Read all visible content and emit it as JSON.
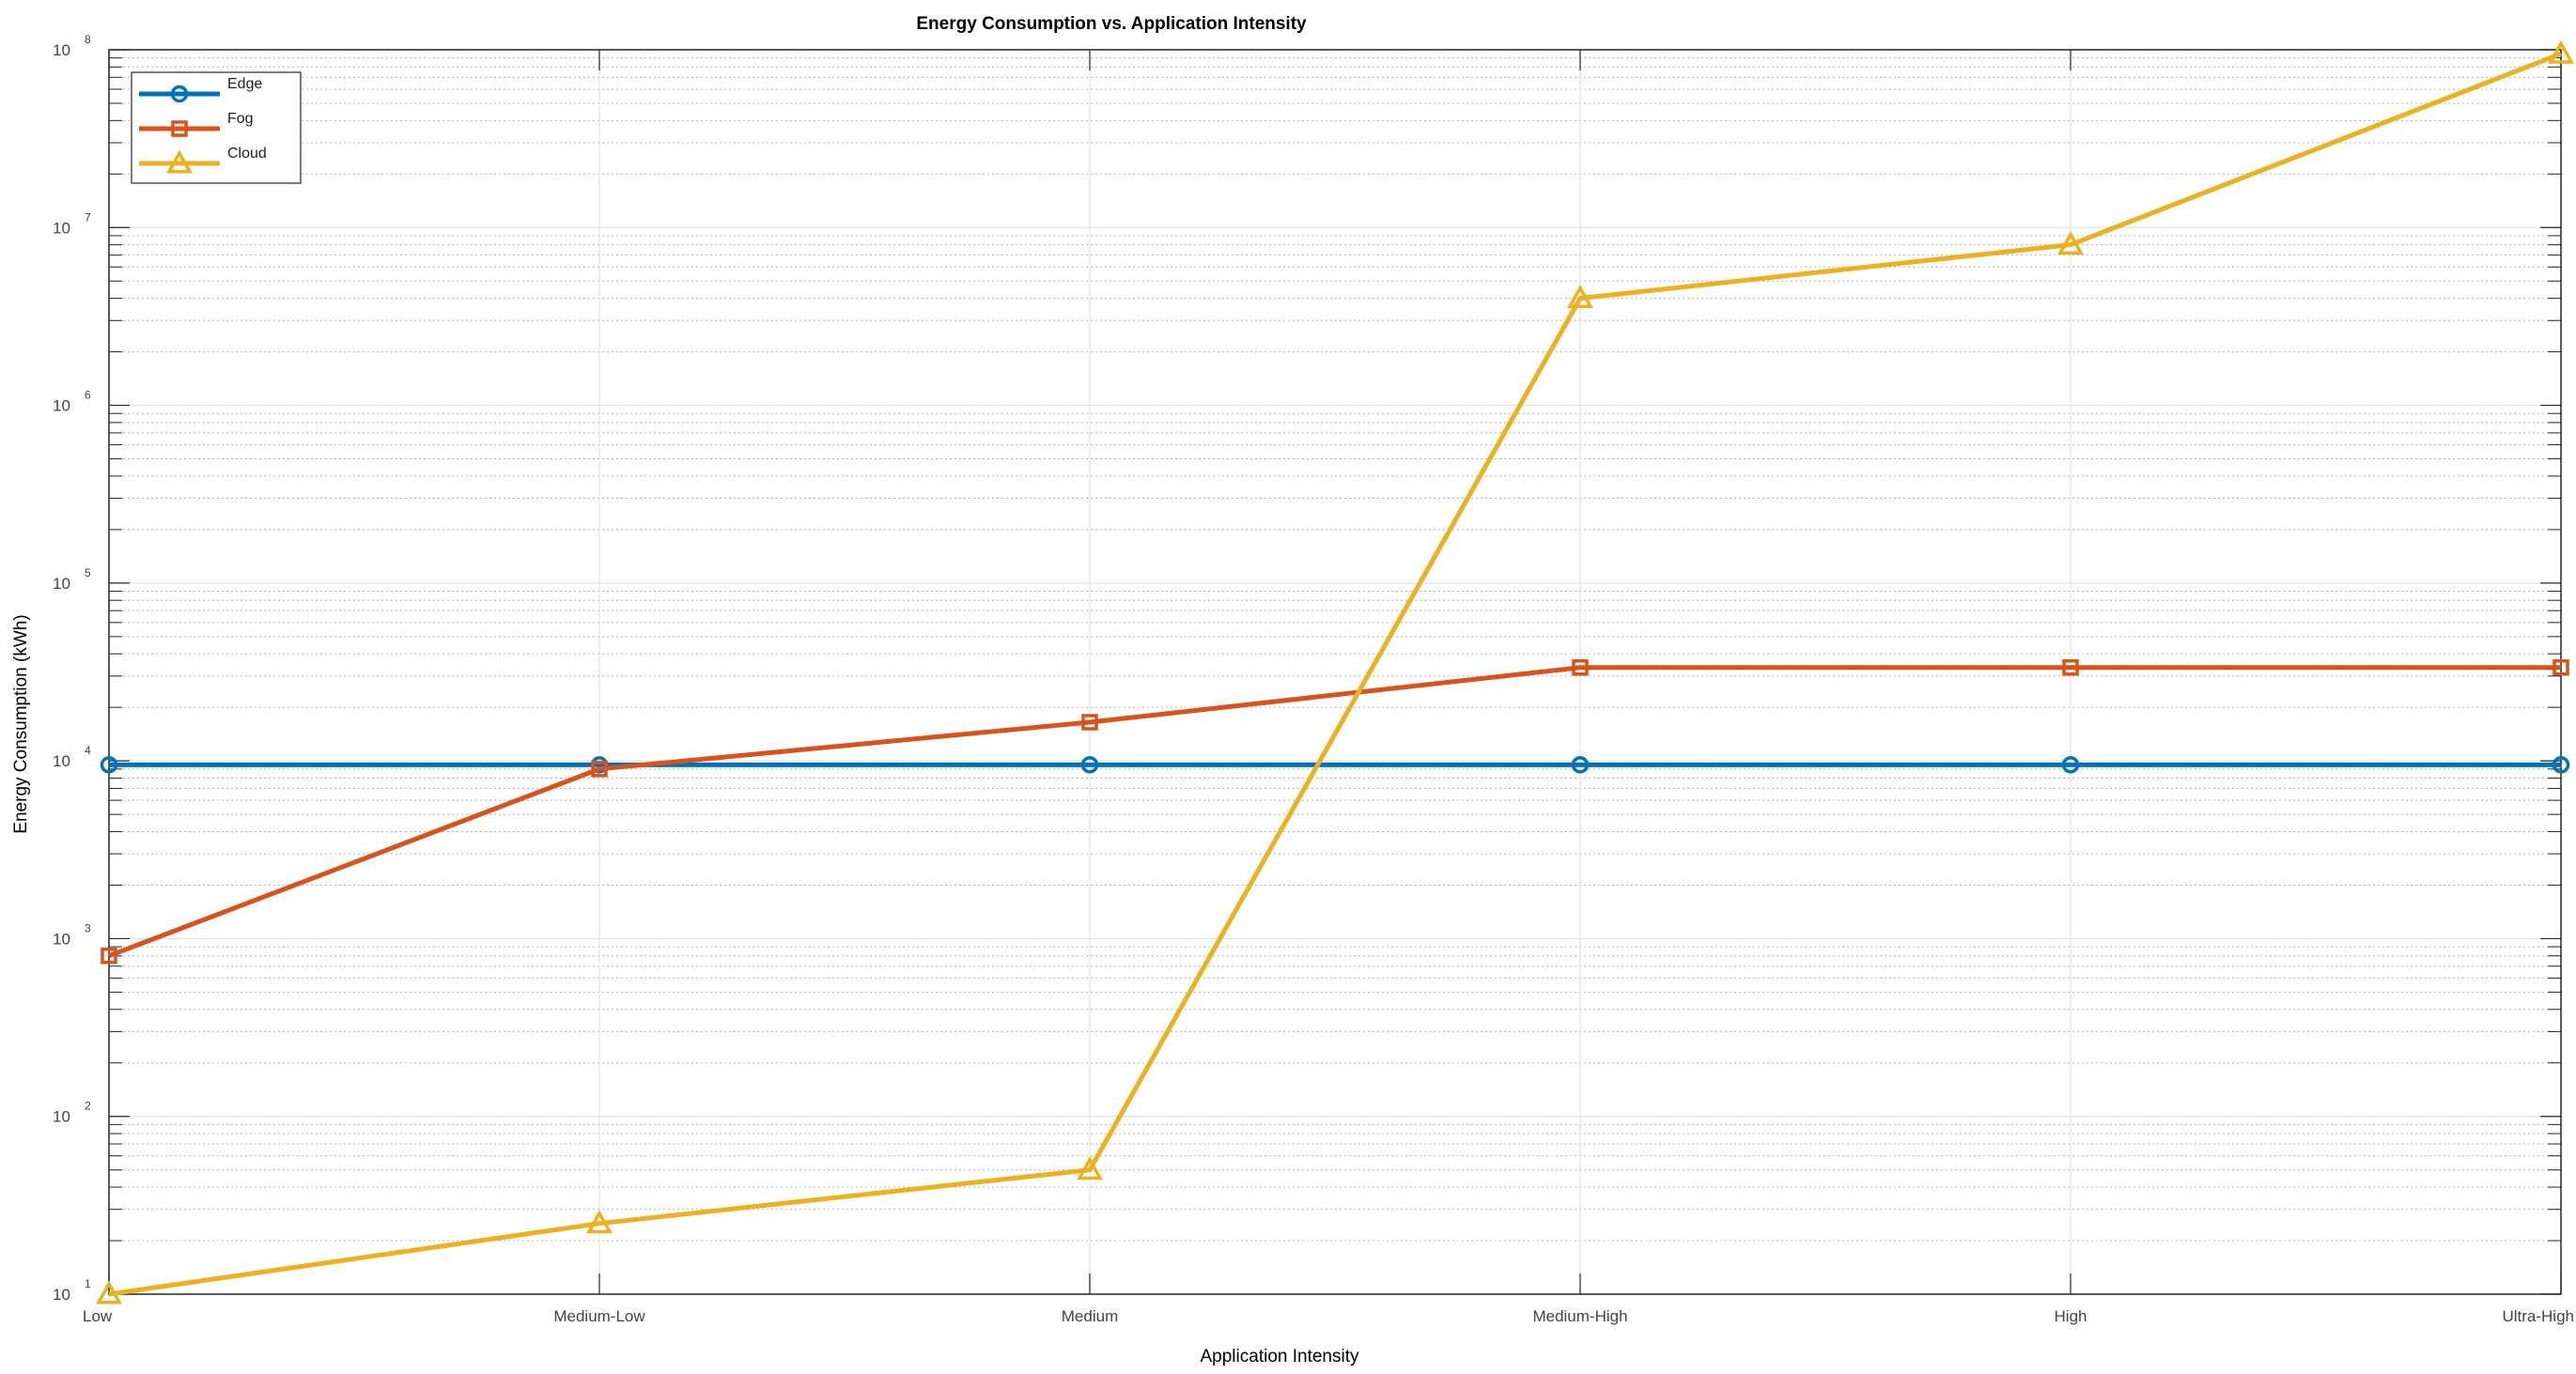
{
  "chart_data": {
    "type": "line",
    "title": "Energy Consumption vs. Application Intensity",
    "xlabel": "Application Intensity",
    "ylabel": "Energy Consumption (kWh)",
    "categories": [
      "Low",
      "Medium-Low",
      "Medium",
      "Medium-High",
      "High",
      "Ultra-High"
    ],
    "y_scale": "log",
    "ylim": [
      10,
      100000000
    ],
    "y_ticks": [
      {
        "base": "10",
        "exp": "1",
        "value": 10
      },
      {
        "base": "10",
        "exp": "2",
        "value": 100
      },
      {
        "base": "10",
        "exp": "3",
        "value": 1000
      },
      {
        "base": "10",
        "exp": "4",
        "value": 10000
      },
      {
        "base": "10",
        "exp": "5",
        "value": 100000
      },
      {
        "base": "10",
        "exp": "6",
        "value": 1000000
      },
      {
        "base": "10",
        "exp": "7",
        "value": 10000000
      },
      {
        "base": "10",
        "exp": "8",
        "value": 100000000
      }
    ],
    "grid": true,
    "minor_grid": true,
    "legend_position": "top-left",
    "series": [
      {
        "name": "Edge",
        "color": "#0072BD",
        "marker": "circle",
        "values": [
          9500,
          9500,
          9500,
          9500,
          9500,
          9500
        ]
      },
      {
        "name": "Fog",
        "color": "#D95319",
        "marker": "square",
        "values": [
          800,
          9000,
          16500,
          33500,
          33500,
          33500
        ]
      },
      {
        "name": "Cloud",
        "color": "#EDB120",
        "marker": "triangle",
        "values": [
          10,
          25,
          50,
          4000000,
          8000000,
          95000000
        ]
      }
    ]
  }
}
